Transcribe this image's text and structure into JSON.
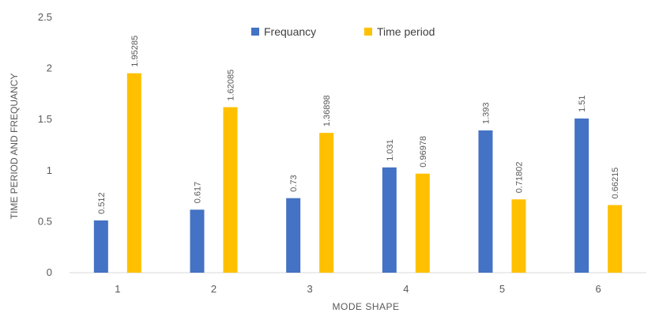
{
  "chart_data": {
    "type": "bar",
    "title": "",
    "xlabel": "MODE SHAPE",
    "ylabel": "TIME PERIOD AND FREQUANCY",
    "categories": [
      "1",
      "2",
      "3",
      "4",
      "5",
      "6"
    ],
    "series": [
      {
        "name": "Frequancy",
        "color": "#4472C4",
        "values": [
          0.512,
          0.617,
          0.73,
          1.031,
          1.393,
          1.51
        ],
        "labels": [
          "0.512",
          "0.617",
          "0.73",
          "1.031",
          "1.393",
          "1.51"
        ]
      },
      {
        "name": "Time period",
        "color": "#FFC000",
        "values": [
          1.95285,
          1.62085,
          1.36898,
          0.96978,
          0.71802,
          0.66215
        ],
        "labels": [
          "1.95285",
          "1.62085",
          "1.36898",
          "0.96978",
          "0.71802",
          "0.66215"
        ]
      }
    ],
    "ylim": [
      0,
      2.5
    ],
    "yticks": [
      "0",
      "0.5",
      "1",
      "1.5",
      "2",
      "2.5"
    ],
    "legend": "top-center",
    "grid": false
  }
}
